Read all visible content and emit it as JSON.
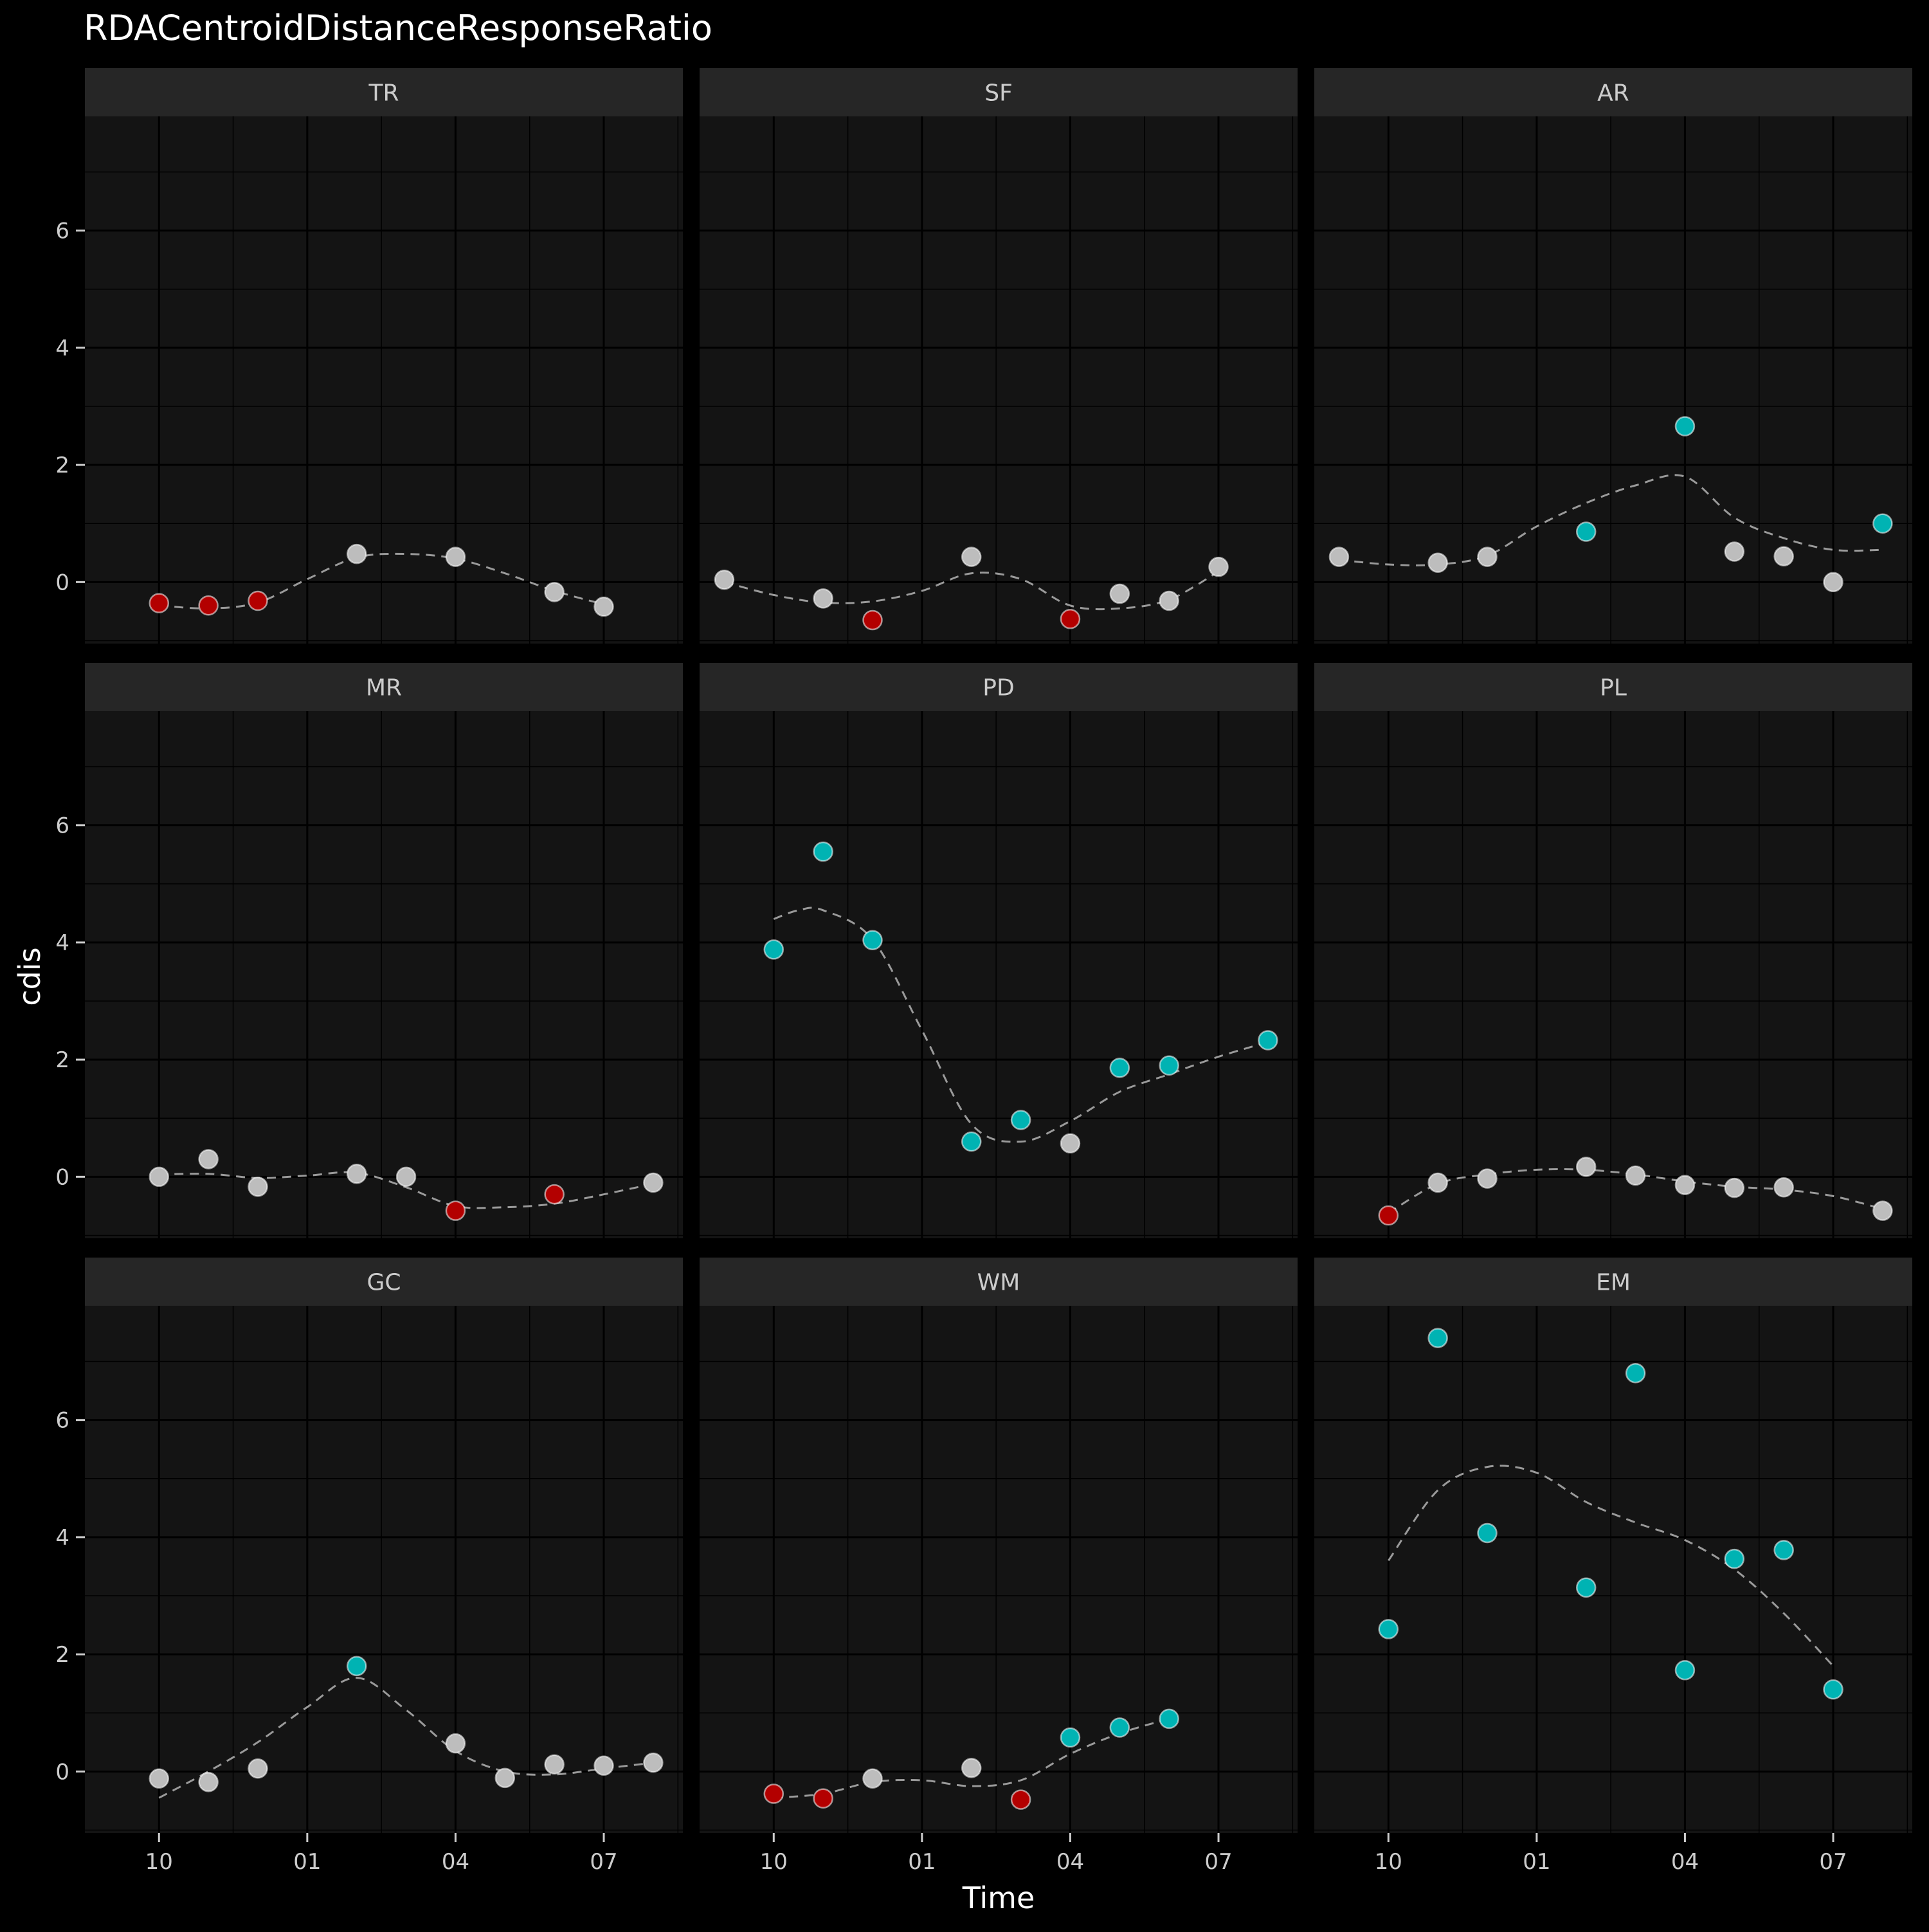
{
  "chart_data": {
    "type": "scatter",
    "title": "RDACentroidDistanceResponseRatio",
    "xlabel": "Time",
    "ylabel": "cdis",
    "x_ticks": [
      {
        "label": "10",
        "x": 0
      },
      {
        "label": "01",
        "x": 3
      },
      {
        "label": "04",
        "x": 6
      },
      {
        "label": "07",
        "x": 9
      }
    ],
    "xlim": [
      -1.5,
      10.6
    ],
    "y_ticks": [
      0,
      2,
      4,
      6
    ],
    "ylim": [
      -1.05,
      7.95
    ],
    "colors": {
      "background": "#000000",
      "panel": "#141414",
      "strip": "#262626",
      "grid": "#000000",
      "text": "#cccccc",
      "title": "#ffffff",
      "neutral_point": "#bdbdbd",
      "high_point": "#00b3b3",
      "low_point": "#b30000",
      "trend_line": "#9a9a9a"
    },
    "trend_line": "dashed smooth",
    "panels": [
      {
        "name": "TR",
        "points": [
          {
            "x": 0,
            "y": -0.36,
            "group": "low"
          },
          {
            "x": 1,
            "y": -0.4,
            "group": "low"
          },
          {
            "x": 2,
            "y": -0.32,
            "group": "low"
          },
          {
            "x": 4,
            "y": 0.48,
            "group": "neutral"
          },
          {
            "x": 6,
            "y": 0.43,
            "group": "neutral"
          },
          {
            "x": 8,
            "y": -0.17,
            "group": "neutral"
          },
          {
            "x": 9,
            "y": -0.42,
            "group": "neutral"
          }
        ],
        "smooth": [
          [
            0,
            -0.4
          ],
          [
            1,
            -0.45
          ],
          [
            2,
            -0.35
          ],
          [
            3,
            0.05
          ],
          [
            4,
            0.42
          ],
          [
            5,
            0.48
          ],
          [
            6,
            0.4
          ],
          [
            7,
            0.15
          ],
          [
            8,
            -0.15
          ],
          [
            9,
            -0.38
          ]
        ]
      },
      {
        "name": "SF",
        "points": [
          {
            "x": -1,
            "y": 0.04,
            "group": "neutral"
          },
          {
            "x": 1,
            "y": -0.28,
            "group": "neutral"
          },
          {
            "x": 2,
            "y": -0.65,
            "group": "low"
          },
          {
            "x": 4,
            "y": 0.43,
            "group": "neutral"
          },
          {
            "x": 6,
            "y": -0.63,
            "group": "low"
          },
          {
            "x": 7,
            "y": -0.2,
            "group": "neutral"
          },
          {
            "x": 8,
            "y": -0.32,
            "group": "neutral"
          },
          {
            "x": 9,
            "y": 0.26,
            "group": "neutral"
          }
        ],
        "smooth": [
          [
            -1,
            0.0
          ],
          [
            0,
            -0.22
          ],
          [
            1,
            -0.35
          ],
          [
            2,
            -0.33
          ],
          [
            3,
            -0.15
          ],
          [
            4,
            0.15
          ],
          [
            5,
            0.05
          ],
          [
            6,
            -0.4
          ],
          [
            7,
            -0.45
          ],
          [
            8,
            -0.3
          ],
          [
            9,
            0.18
          ]
        ]
      },
      {
        "name": "AR",
        "points": [
          {
            "x": -1,
            "y": 0.43,
            "group": "neutral"
          },
          {
            "x": 1,
            "y": 0.33,
            "group": "neutral"
          },
          {
            "x": 2,
            "y": 0.43,
            "group": "neutral"
          },
          {
            "x": 4,
            "y": 0.86,
            "group": "high"
          },
          {
            "x": 6,
            "y": 2.66,
            "group": "high"
          },
          {
            "x": 7,
            "y": 0.52,
            "group": "neutral"
          },
          {
            "x": 8,
            "y": 0.44,
            "group": "neutral"
          },
          {
            "x": 9,
            "y": 0.0,
            "group": "neutral"
          },
          {
            "x": 10,
            "y": 1.0,
            "group": "high"
          }
        ],
        "smooth": [
          [
            -1,
            0.38
          ],
          [
            0,
            0.3
          ],
          [
            1,
            0.3
          ],
          [
            2,
            0.45
          ],
          [
            3,
            0.95
          ],
          [
            4,
            1.35
          ],
          [
            5,
            1.65
          ],
          [
            6,
            1.8
          ],
          [
            7,
            1.1
          ],
          [
            8,
            0.75
          ],
          [
            9,
            0.55
          ],
          [
            10,
            0.55
          ]
        ]
      },
      {
        "name": "MR",
        "points": [
          {
            "x": 0,
            "y": 0.0,
            "group": "neutral"
          },
          {
            "x": 1,
            "y": 0.3,
            "group": "neutral"
          },
          {
            "x": 2,
            "y": -0.17,
            "group": "neutral"
          },
          {
            "x": 4,
            "y": 0.05,
            "group": "neutral"
          },
          {
            "x": 5,
            "y": 0.0,
            "group": "neutral"
          },
          {
            "x": 6,
            "y": -0.58,
            "group": "low"
          },
          {
            "x": 8,
            "y": -0.3,
            "group": "low"
          },
          {
            "x": 10,
            "y": -0.1,
            "group": "neutral"
          }
        ],
        "smooth": [
          [
            0,
            0.04
          ],
          [
            1,
            0.05
          ],
          [
            2,
            -0.02
          ],
          [
            3,
            0.02
          ],
          [
            4,
            0.07
          ],
          [
            5,
            -0.18
          ],
          [
            6,
            -0.5
          ],
          [
            7,
            -0.52
          ],
          [
            8,
            -0.46
          ],
          [
            9,
            -0.3
          ],
          [
            10,
            -0.12
          ]
        ]
      },
      {
        "name": "PD",
        "points": [
          {
            "x": 0,
            "y": 3.88,
            "group": "high"
          },
          {
            "x": 1,
            "y": 5.55,
            "group": "high"
          },
          {
            "x": 2,
            "y": 4.04,
            "group": "high"
          },
          {
            "x": 4,
            "y": 0.6,
            "group": "high"
          },
          {
            "x": 5,
            "y": 0.97,
            "group": "high"
          },
          {
            "x": 6,
            "y": 0.57,
            "group": "neutral"
          },
          {
            "x": 7,
            "y": 1.86,
            "group": "high"
          },
          {
            "x": 8,
            "y": 1.9,
            "group": "high"
          },
          {
            "x": 10,
            "y": 2.33,
            "group": "high"
          }
        ],
        "smooth": [
          [
            0,
            4.4
          ],
          [
            0.5,
            4.55
          ],
          [
            1,
            4.55
          ],
          [
            2,
            4.05
          ],
          [
            3,
            2.5
          ],
          [
            4,
            0.9
          ],
          [
            5,
            0.6
          ],
          [
            6,
            0.95
          ],
          [
            7,
            1.45
          ],
          [
            8,
            1.75
          ],
          [
            9,
            2.05
          ],
          [
            10,
            2.3
          ]
        ]
      },
      {
        "name": "PL",
        "points": [
          {
            "x": 0,
            "y": -0.66,
            "group": "low"
          },
          {
            "x": 1,
            "y": -0.1,
            "group": "neutral"
          },
          {
            "x": 2,
            "y": -0.03,
            "group": "neutral"
          },
          {
            "x": 4,
            "y": 0.17,
            "group": "neutral"
          },
          {
            "x": 5,
            "y": 0.02,
            "group": "neutral"
          },
          {
            "x": 6,
            "y": -0.14,
            "group": "neutral"
          },
          {
            "x": 7,
            "y": -0.19,
            "group": "neutral"
          },
          {
            "x": 8,
            "y": -0.18,
            "group": "neutral"
          },
          {
            "x": 10,
            "y": -0.58,
            "group": "neutral"
          }
        ],
        "smooth": [
          [
            0,
            -0.62
          ],
          [
            1,
            -0.12
          ],
          [
            2,
            0.04
          ],
          [
            3,
            0.12
          ],
          [
            4,
            0.12
          ],
          [
            5,
            0.04
          ],
          [
            6,
            -0.08
          ],
          [
            7,
            -0.17
          ],
          [
            8,
            -0.22
          ],
          [
            9,
            -0.33
          ],
          [
            10,
            -0.55
          ]
        ]
      },
      {
        "name": "GC",
        "points": [
          {
            "x": 0,
            "y": -0.12,
            "group": "neutral"
          },
          {
            "x": 1,
            "y": -0.18,
            "group": "neutral"
          },
          {
            "x": 2,
            "y": 0.05,
            "group": "neutral"
          },
          {
            "x": 4,
            "y": 1.8,
            "group": "high"
          },
          {
            "x": 6,
            "y": 0.48,
            "group": "neutral"
          },
          {
            "x": 7,
            "y": -0.11,
            "group": "neutral"
          },
          {
            "x": 8,
            "y": 0.12,
            "group": "neutral"
          },
          {
            "x": 9,
            "y": 0.1,
            "group": "neutral"
          },
          {
            "x": 10,
            "y": 0.15,
            "group": "neutral"
          }
        ],
        "smooth": [
          [
            0,
            -0.45
          ],
          [
            1,
            0.0
          ],
          [
            2,
            0.5
          ],
          [
            3,
            1.1
          ],
          [
            4,
            1.6
          ],
          [
            5,
            1.05
          ],
          [
            6,
            0.35
          ],
          [
            7,
            0.0
          ],
          [
            8,
            -0.05
          ],
          [
            9,
            0.05
          ],
          [
            10,
            0.15
          ]
        ]
      },
      {
        "name": "WM",
        "points": [
          {
            "x": 0,
            "y": -0.38,
            "group": "low"
          },
          {
            "x": 1,
            "y": -0.46,
            "group": "low"
          },
          {
            "x": 2,
            "y": -0.12,
            "group": "neutral"
          },
          {
            "x": 4,
            "y": 0.06,
            "group": "neutral"
          },
          {
            "x": 5,
            "y": -0.48,
            "group": "low"
          },
          {
            "x": 6,
            "y": 0.58,
            "group": "high"
          },
          {
            "x": 7,
            "y": 0.75,
            "group": "high"
          },
          {
            "x": 8,
            "y": 0.9,
            "group": "high"
          }
        ],
        "smooth": [
          [
            0,
            -0.45
          ],
          [
            1,
            -0.38
          ],
          [
            2,
            -0.18
          ],
          [
            3,
            -0.15
          ],
          [
            4,
            -0.25
          ],
          [
            5,
            -0.15
          ],
          [
            6,
            0.3
          ],
          [
            7,
            0.65
          ],
          [
            8,
            0.9
          ]
        ]
      },
      {
        "name": "EM",
        "points": [
          {
            "x": 0,
            "y": 2.43,
            "group": "high"
          },
          {
            "x": 1,
            "y": 7.4,
            "group": "high"
          },
          {
            "x": 2,
            "y": 4.07,
            "group": "high"
          },
          {
            "x": 4,
            "y": 3.14,
            "group": "high"
          },
          {
            "x": 5,
            "y": 6.8,
            "group": "high"
          },
          {
            "x": 6,
            "y": 1.73,
            "group": "high"
          },
          {
            "x": 7,
            "y": 3.63,
            "group": "high"
          },
          {
            "x": 8,
            "y": 3.78,
            "group": "high"
          },
          {
            "x": 9,
            "y": 1.4,
            "group": "high"
          }
        ],
        "smooth": [
          [
            0,
            3.6
          ],
          [
            1,
            4.8
          ],
          [
            2,
            5.2
          ],
          [
            3,
            5.1
          ],
          [
            4,
            4.6
          ],
          [
            5,
            4.25
          ],
          [
            6,
            3.95
          ],
          [
            7,
            3.45
          ],
          [
            8,
            2.7
          ],
          [
            9,
            1.8
          ]
        ]
      }
    ]
  }
}
